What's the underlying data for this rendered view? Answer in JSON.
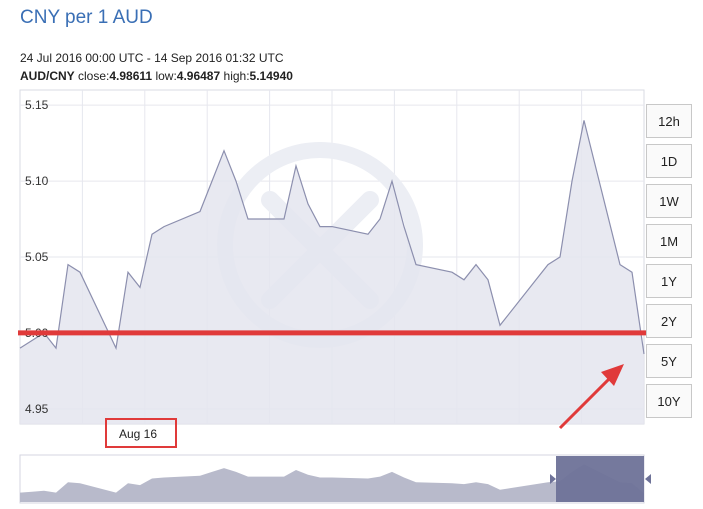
{
  "header": {
    "title": "CNY per 1 AUD",
    "range": "24 Jul 2016 00:00 UTC - 14 Sep 2016 01:32 UTC",
    "pair": "AUD/CNY",
    "close_label": "close:",
    "close_value": "4.98611",
    "low_label": "low:",
    "low_value": "4.96487",
    "high_label": "high:",
    "high_value": "5.14940"
  },
  "range_buttons": [
    "12h",
    "1D",
    "1W",
    "1M",
    "1Y",
    "2Y",
    "5Y",
    "10Y"
  ],
  "x_marker_label": "Aug 16",
  "colors": {
    "title": "#3a6fb5",
    "line": "#8c8fae",
    "area": "#e4e5ee",
    "highlight": "#e03a3a",
    "navigator_fill": "#b8bacb",
    "navigator_window": "#6e7298"
  },
  "chart_data": {
    "type": "line",
    "series": [
      {
        "name": "AUD/CNY",
        "x": [
          "2016-07-24",
          "2016-07-25",
          "2016-07-26",
          "2016-07-27",
          "2016-07-28",
          "2016-07-29",
          "2016-08-01",
          "2016-08-02",
          "2016-08-03",
          "2016-08-04",
          "2016-08-05",
          "2016-08-08",
          "2016-08-09",
          "2016-08-10",
          "2016-08-11",
          "2016-08-12",
          "2016-08-15",
          "2016-08-16",
          "2016-08-17",
          "2016-08-18",
          "2016-08-19",
          "2016-08-22",
          "2016-08-23",
          "2016-08-24",
          "2016-08-25",
          "2016-08-26",
          "2016-08-29",
          "2016-08-30",
          "2016-08-31",
          "2016-09-01",
          "2016-09-02",
          "2016-09-05",
          "2016-09-06",
          "2016-09-07",
          "2016-09-08",
          "2016-09-09",
          "2016-09-12",
          "2016-09-13",
          "2016-09-14"
        ],
        "y": [
          4.99,
          4.995,
          5.0,
          4.99,
          5.045,
          5.04,
          4.99,
          5.04,
          5.03,
          5.065,
          5.07,
          5.08,
          5.1,
          5.12,
          5.1,
          5.075,
          5.075,
          5.11,
          5.085,
          5.07,
          5.07,
          5.065,
          5.075,
          5.1,
          5.07,
          5.045,
          5.04,
          5.035,
          5.045,
          5.035,
          5.005,
          5.035,
          5.045,
          5.05,
          5.1,
          5.14,
          5.045,
          5.04,
          4.98611
        ]
      }
    ],
    "yticks": [
      "5.15",
      "5.10",
      "5.05",
      "5.00",
      "4.95"
    ],
    "ylim": [
      4.94,
      5.16
    ],
    "xlim": [
      "2016-07-24",
      "2016-09-14"
    ],
    "highlight_level": 5.0,
    "grid": true
  }
}
